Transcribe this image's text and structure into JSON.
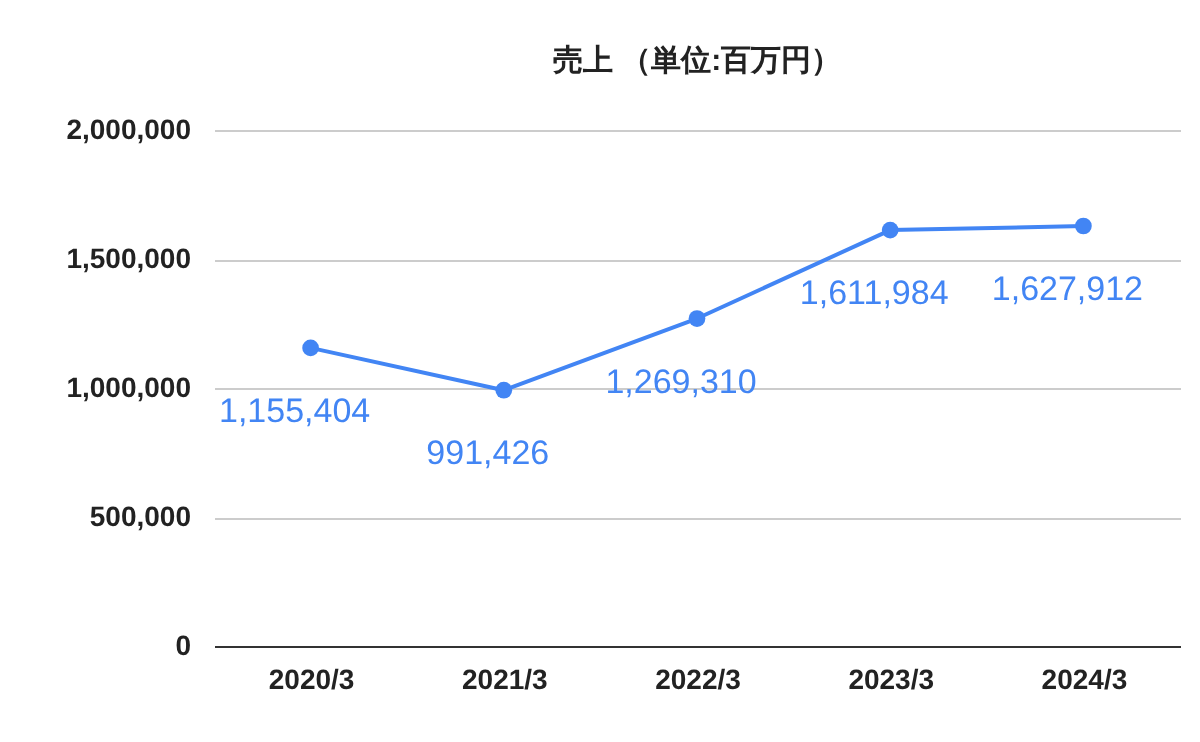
{
  "chart_data": {
    "type": "line",
    "title": "売上 （単位:百万円）",
    "categories": [
      "2020/3",
      "2021/3",
      "2022/3",
      "2023/3",
      "2024/3"
    ],
    "series": [
      {
        "color": "#4285f4",
        "values": [
          1155404,
          991426,
          1269310,
          1611984,
          1627912
        ],
        "value_labels": [
          "1,155,404",
          "991,426",
          "1,269,310",
          "1,611,984",
          "1,627,912"
        ]
      }
    ],
    "ylim": [
      0,
      2000000
    ],
    "yticks": [
      0,
      {
        "value": 500000,
        "label": "500,000"
      },
      {
        "value": 1000000,
        "label": "1,000,000"
      },
      {
        "value": 1500000,
        "label": "1,500,000"
      },
      {
        "value": 2000000,
        "label": "2,000,000"
      }
    ],
    "grid": "y",
    "legend": false,
    "marker": "circle",
    "line_style": "solid"
  }
}
